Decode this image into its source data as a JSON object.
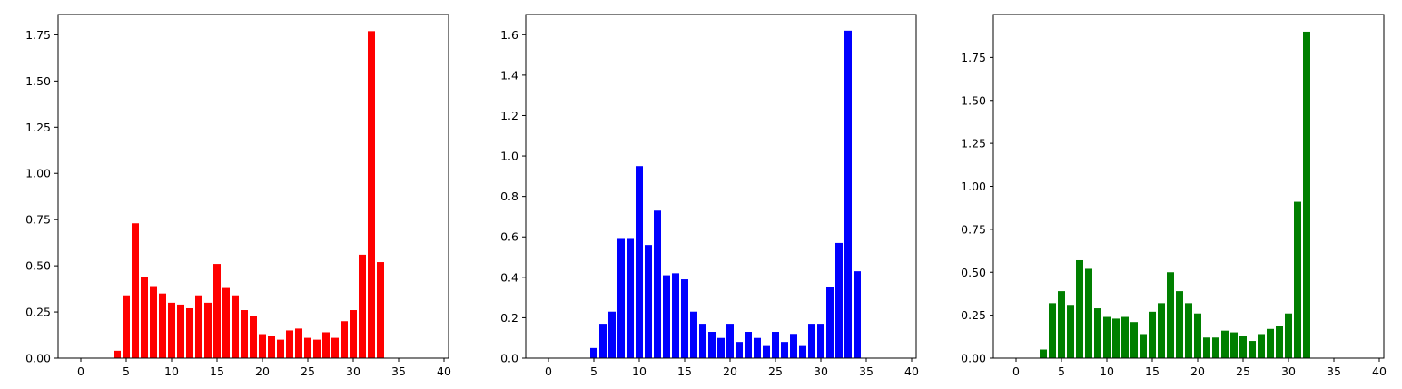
{
  "chart_data": [
    {
      "type": "bar",
      "color": "#ff0000",
      "x": [
        4,
        5,
        6,
        7,
        8,
        9,
        10,
        11,
        12,
        13,
        14,
        15,
        16,
        17,
        18,
        19,
        20,
        21,
        22,
        23,
        24,
        25,
        26,
        27,
        28,
        29,
        30,
        31,
        32,
        33
      ],
      "values": [
        0.04,
        0.34,
        0.73,
        0.44,
        0.39,
        0.35,
        0.3,
        0.29,
        0.27,
        0.34,
        0.3,
        0.51,
        0.38,
        0.34,
        0.26,
        0.23,
        0.13,
        0.12,
        0.1,
        0.15,
        0.16,
        0.11,
        0.1,
        0.14,
        0.11,
        0.2,
        0.26,
        0.56,
        1.77,
        0.52
      ],
      "xlim": [
        -2.5,
        40.5
      ],
      "ylim": [
        0,
        1.86
      ],
      "xticks": [
        "0",
        "5",
        "10",
        "15",
        "20",
        "25",
        "30",
        "35",
        "40"
      ],
      "yticks": [
        "0.00",
        "0.25",
        "0.50",
        "0.75",
        "1.00",
        "1.25",
        "1.50",
        "1.75"
      ]
    },
    {
      "type": "bar",
      "color": "#0000ff",
      "x": [
        5,
        6,
        7,
        8,
        9,
        10,
        11,
        12,
        13,
        14,
        15,
        16,
        17,
        18,
        19,
        20,
        21,
        22,
        23,
        24,
        25,
        26,
        27,
        28,
        29,
        30,
        31,
        32,
        33,
        34
      ],
      "values": [
        0.05,
        0.17,
        0.23,
        0.59,
        0.59,
        0.95,
        0.56,
        0.73,
        0.41,
        0.42,
        0.39,
        0.23,
        0.17,
        0.13,
        0.1,
        0.17,
        0.08,
        0.13,
        0.1,
        0.06,
        0.13,
        0.08,
        0.12,
        0.06,
        0.17,
        0.17,
        0.35,
        0.57,
        1.62,
        0.43
      ],
      "xlim": [
        -2.5,
        40.5
      ],
      "ylim": [
        0,
        1.7
      ],
      "xticks": [
        "0",
        "5",
        "10",
        "15",
        "20",
        "25",
        "30",
        "35",
        "40"
      ],
      "yticks": [
        "0.0",
        "0.2",
        "0.4",
        "0.6",
        "0.8",
        "1.0",
        "1.2",
        "1.4",
        "1.6"
      ]
    },
    {
      "type": "bar",
      "color": "#007f00",
      "x": [
        3,
        4,
        5,
        6,
        7,
        8,
        9,
        10,
        11,
        12,
        13,
        14,
        15,
        16,
        17,
        18,
        19,
        20,
        21,
        22,
        23,
        24,
        25,
        26,
        27,
        28,
        29,
        30,
        31,
        32
      ],
      "values": [
        0.05,
        0.32,
        0.39,
        0.31,
        0.57,
        0.52,
        0.29,
        0.24,
        0.23,
        0.24,
        0.21,
        0.14,
        0.27,
        0.32,
        0.5,
        0.39,
        0.32,
        0.26,
        0.12,
        0.12,
        0.16,
        0.15,
        0.13,
        0.1,
        0.14,
        0.17,
        0.19,
        0.26,
        0.91,
        1.9
      ],
      "xlim": [
        -2.5,
        40.5
      ],
      "ylim": [
        0,
        2.0
      ],
      "xticks": [
        "0",
        "5",
        "10",
        "15",
        "20",
        "25",
        "30",
        "35",
        "40"
      ],
      "yticks": [
        "0.00",
        "0.25",
        "0.50",
        "0.75",
        "1.00",
        "1.25",
        "1.50",
        "1.75"
      ]
    }
  ]
}
